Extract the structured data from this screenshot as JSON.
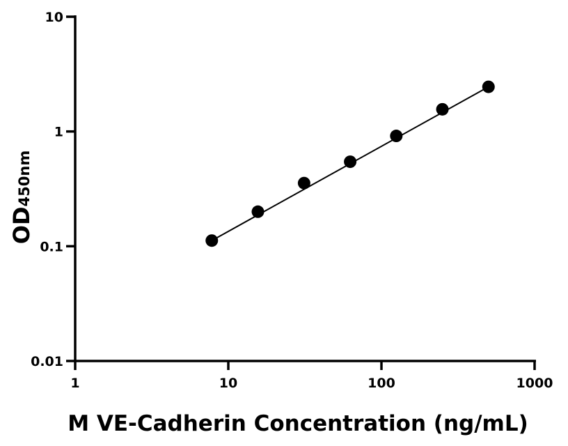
{
  "chart_data": {
    "type": "scatter",
    "title": "",
    "xlabel": "M VE-Cadherin Concentration (ng/mL)",
    "ylabel_main": "OD",
    "ylabel_sub": "450nm",
    "x_scale": "log",
    "y_scale": "log",
    "xlim": [
      1,
      1000
    ],
    "ylim": [
      0.01,
      10
    ],
    "x_ticks": [
      {
        "value": 1,
        "label": "1"
      },
      {
        "value": 10,
        "label": "10"
      },
      {
        "value": 100,
        "label": "100"
      },
      {
        "value": 1000,
        "label": "1000"
      }
    ],
    "y_ticks": [
      {
        "value": 0.01,
        "label": "0.01"
      },
      {
        "value": 0.1,
        "label": "0.1"
      },
      {
        "value": 1,
        "label": "1"
      },
      {
        "value": 10,
        "label": "10"
      }
    ],
    "grid": false,
    "series": [
      {
        "x": [
          7.8,
          15.6,
          31.25,
          62.5,
          125,
          250,
          500
        ],
        "y": [
          0.112,
          0.2,
          0.355,
          0.545,
          0.915,
          1.56,
          2.45
        ],
        "color": "#000000",
        "marker": "circle",
        "fit_line": true
      }
    ]
  }
}
